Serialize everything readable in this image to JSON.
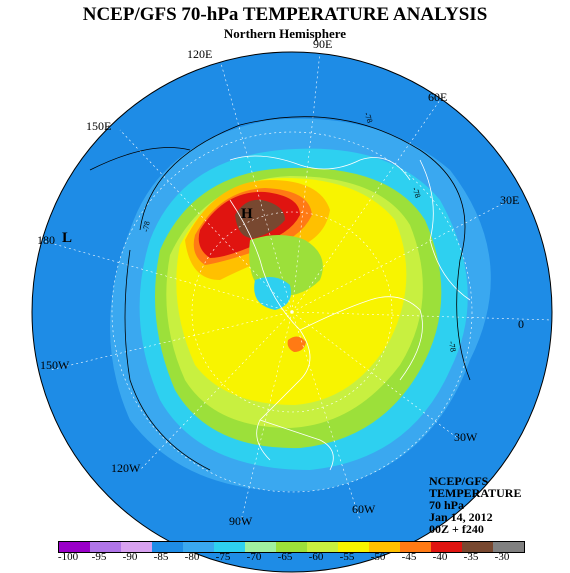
{
  "header": {
    "title": "NCEP/GFS 70-hPa TEMPERATURE ANALYSIS",
    "subtitle": "Northern Hemisphere"
  },
  "longitude_labels": [
    "90E",
    "120E",
    "60E",
    "150E",
    "30E",
    "180",
    "0",
    "150W",
    "30W",
    "120W",
    "60W",
    "90W"
  ],
  "contour_labels": [
    "-78",
    "-78",
    "-78",
    "-78"
  ],
  "pressure_centers": {
    "low": "L",
    "high": "H"
  },
  "info_box": {
    "line1": "NCEP/GFS",
    "line2": "TEMPERATURE",
    "line3": "70 hPa",
    "line4": "Jan 14, 2012",
    "line5": "00Z + f240"
  },
  "colorbar": {
    "ticks": [
      "-100",
      "-95",
      "-90",
      "-85",
      "-80",
      "-75",
      "-70",
      "-65",
      "-60",
      "-55",
      "-50",
      "-45",
      "-40",
      "-35",
      "-30"
    ],
    "colors": [
      "#9a00c8",
      "#b075e8",
      "#d8a2f0",
      "#1e8ce6",
      "#3aa8f0",
      "#2ed0f0",
      "#a0f0a0",
      "#9ce03a",
      "#c8f040",
      "#f8f400",
      "#ffc000",
      "#ff7a14",
      "#e01410",
      "#784830",
      "#808080"
    ]
  },
  "colors": {
    "ocean_base": "#1e8ce6",
    "mid": "#3aa8f0",
    "cyan": "#2ed0f0",
    "green": "#9ce03a",
    "yellowgreen": "#c8f040",
    "yellow": "#f8f400",
    "orange": "#ffc000",
    "darkorange": "#ff7a14",
    "red": "#e01410",
    "brown": "#784830",
    "gray": "#808080"
  }
}
